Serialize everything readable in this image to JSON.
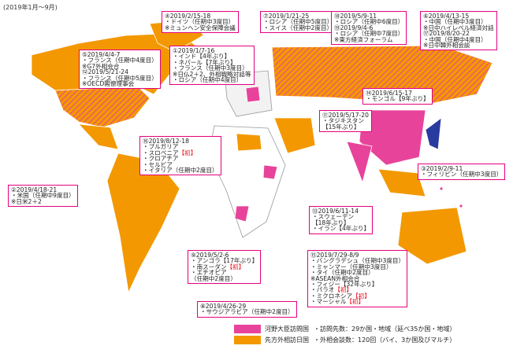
{
  "period": "(2019年1月～9月)",
  "boxes": [
    {
      "lines": [
        "④2019/2/15-18",
        "・ドイツ（任期中3度目）",
        "※ミュンヘン安全保障会議"
      ]
    },
    {
      "lines": [
        "⑦2019/1/21-25",
        "・ロシア（任期中5度目）",
        "・スイス（任期中2度目）"
      ]
    },
    {
      "lines": [
        "⑱2019/5/9-11",
        "・ロシア（任期中6度目）",
        "⑲2019/9/4-6",
        "・ロシア（任期中7度目）",
        "※東方経済フォーラム"
      ]
    },
    {
      "lines": [
        "⑥2019/4/13-15",
        "・中国（任期中3度目）",
        "※日中ハイレベル経済対話",
        "⑰2019/8/20-22",
        "・中国（任期中4度目）",
        "※日中韓外相会談"
      ]
    },
    {
      "lines": [
        "⑤2019/4/4-7",
        "・フランス（任期中4度目）",
        "※G7外相会合",
        "⑫2019/5/21-24",
        "・フランス（任期中5度目）",
        "※OECD閣僚理事会"
      ]
    },
    {
      "lines": [
        "①2019/1/7-16",
        "・インド【4年ぶり】",
        "・ネパール【7年ぶり】",
        "・フランス（任期中3度目）",
        "※日仏2＋2、外相戦略対話等",
        "・ロシア（任期中4度目）"
      ]
    },
    {
      "lines": [
        "⑭2019/6/15-17",
        "・モンゴル【9年ぶり】"
      ]
    },
    {
      "lines": [
        "⑪2019/5/17-20",
        "・タジキスタン",
        "【15年ぶり】"
      ]
    },
    {
      "lines": [
        "⑯2019/8/12-18",
        "・ブルガリア",
        {
          "text": "・スロベニア",
          "mark": "【初】"
        },
        "・クロアチア",
        "・セルビア",
        "・イタリア（任期中2度目）"
      ]
    },
    {
      "lines": [
        "③2019/2/9-11",
        "・フィリピン（任期中3度目）"
      ]
    },
    {
      "lines": [
        "②2019/4/18-21",
        "・米国（任期中9度目）",
        "※日米2＋2"
      ]
    },
    {
      "lines": [
        "⑬2019/6/11-14",
        "・スウェーデン",
        "【18年ぶり】",
        "・イラン【4年ぶり】"
      ]
    },
    {
      "lines": [
        "⑨2019/5/2-6",
        "・アンゴラ【17年ぶり】",
        {
          "text": "・南スーダン",
          "mark": "【初】"
        },
        "・エチオピア",
        "（任期中2度目）"
      ]
    },
    {
      "lines": [
        "⑮2019/7/29-8/9",
        "・バングラデシュ（任期中3度目）",
        "・ミャンマー（任期中3度目）",
        "・タイ（任期中2度目）",
        "※ASEAN外相会合",
        "・フィジー【32年ぶり】",
        {
          "text": "・パラオ",
          "mark": "【初】"
        },
        {
          "text": "・ミクロネシア",
          "mark": "【初】"
        },
        {
          "text": "・マーシャル",
          "mark": "【初】"
        }
      ]
    },
    {
      "lines": [
        "⑧2019/4/26-29",
        "・サウジアラビア（任期中2度目）"
      ]
    }
  ],
  "legend": [
    {
      "label": "河野大臣訪問国",
      "note": "・訪問先数：29か国・地域（延べ35か国・地域）",
      "color": "#e8439a"
    },
    {
      "label": "先方外相訪日国",
      "note": "・外相会談数：120回（バイ、3か国及びマルチ）",
      "color": "#f39800"
    }
  ]
}
